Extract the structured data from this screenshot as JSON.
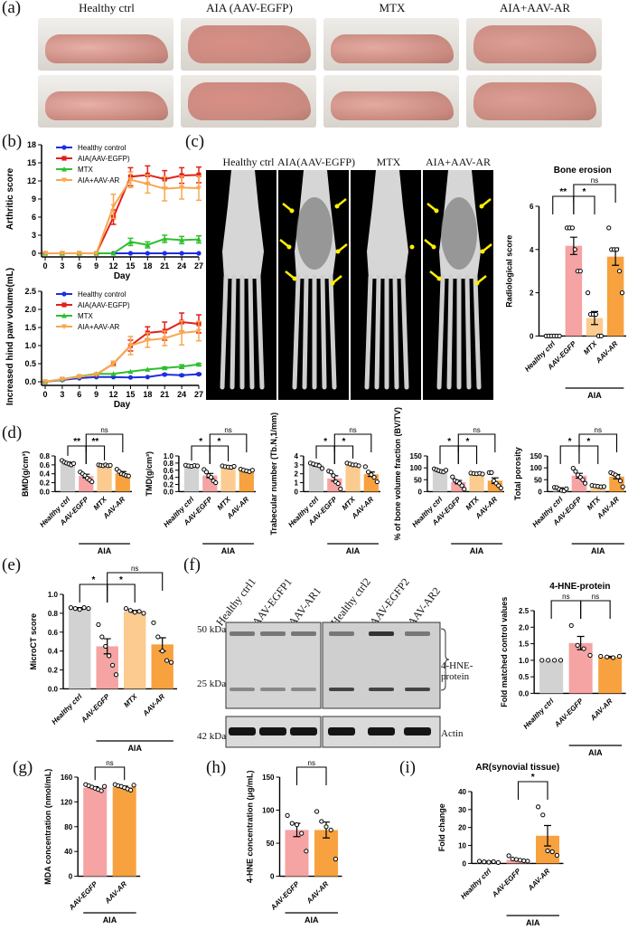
{
  "panels": {
    "a": "(a)",
    "b": "(b)",
    "c": "(c)",
    "d": "(d)",
    "e": "(e)",
    "f": "(f)",
    "g": "(g)",
    "h": "(h)",
    "i": "(i)"
  },
  "photo_headers": [
    "Healthy ctrl",
    "AIA (AAV-EGFP)",
    "MTX",
    "AIA+AAV-AR"
  ],
  "ct_headers": [
    "Healthy ctrl",
    "AIA(AAV-EGFP)",
    "MTX",
    "AIA+AAV-AR"
  ],
  "western": {
    "lanes": [
      "Healthy ctrl1",
      "AAV-EGFP1",
      "AAV-AR1",
      "Healthy ctrl2",
      "AAV-EGFP2",
      "AAV-AR2"
    ],
    "markers": [
      "50 kDa",
      "25 kDa",
      "42 kDa"
    ],
    "band_label": "4-HNE-protein",
    "actin_label": "Actin"
  },
  "colors": {
    "healthy": "#d2d2d2",
    "egfp": "#f5a3a3",
    "mtx": "#fbcb8f",
    "ar": "#f7a23f",
    "blue": "#1f2ee0",
    "red": "#e3201b",
    "green": "#2fbf2f",
    "orange": "#f7a850",
    "arrow": "#ffee00"
  },
  "chart_data": [
    {
      "id": "arthritic",
      "type": "line",
      "xlabel": "Day",
      "ylabel": "Arthritic score",
      "ylim": [
        0,
        18
      ],
      "yticks": [
        0,
        3,
        6,
        9,
        12,
        15,
        18
      ],
      "x": [
        0,
        3,
        6,
        9,
        12,
        15,
        18,
        21,
        24,
        27
      ],
      "legend": "top-left",
      "series": [
        {
          "name": "Healthy control",
          "color": "#1f2ee0",
          "marker": "circle",
          "values": [
            0,
            0,
            0,
            0,
            0,
            0,
            0,
            0,
            0,
            0
          ],
          "err": [
            0,
            0,
            0,
            0,
            0,
            0,
            0,
            0,
            0,
            0
          ]
        },
        {
          "name": "AIA(AAV-EGFP)",
          "color": "#e3201b",
          "marker": "square",
          "values": [
            0,
            0,
            0,
            0,
            6,
            12.7,
            13,
            12.3,
            12.9,
            13
          ],
          "err": [
            0,
            0,
            0,
            0,
            1.2,
            1.5,
            1.5,
            1.4,
            1.3,
            1.3
          ]
        },
        {
          "name": "MTX",
          "color": "#2fbf2f",
          "marker": "triangle",
          "values": [
            0,
            0,
            0,
            0,
            0,
            1.9,
            1.4,
            2.4,
            2.2,
            2.3
          ],
          "err": [
            0,
            0,
            0,
            0,
            0,
            0.6,
            0.5,
            0.6,
            0.6,
            0.6
          ]
        },
        {
          "name": "AIA+AAV-AR",
          "color": "#f7a850",
          "marker": "tri-down",
          "values": [
            0,
            0,
            0,
            0,
            7.8,
            12.2,
            11.5,
            10.7,
            10.9,
            10.8
          ],
          "err": [
            0,
            0,
            0,
            0,
            2,
            1.3,
            1.5,
            2,
            1.9,
            2
          ]
        }
      ]
    },
    {
      "id": "paw",
      "type": "line",
      "xlabel": "Day",
      "ylabel": "Increased hind paw volume(mL)",
      "ylim": [
        0,
        2.5
      ],
      "yticks": [
        0,
        0.5,
        1.0,
        1.5,
        2.0,
        2.5
      ],
      "x": [
        0,
        3,
        6,
        9,
        12,
        15,
        18,
        21,
        24,
        27
      ],
      "legend": "top-left",
      "series": [
        {
          "name": "Healthy control",
          "color": "#1f2ee0",
          "marker": "circle",
          "values": [
            0,
            0.05,
            0.1,
            0.13,
            0.13,
            0.12,
            0.13,
            0.2,
            0.18,
            0.21
          ],
          "err": [
            0,
            0,
            0,
            0,
            0,
            0,
            0,
            0.02,
            0.02,
            0.02
          ]
        },
        {
          "name": "AIA(AAV-EGFP)",
          "color": "#e3201b",
          "marker": "square",
          "values": [
            0,
            0.07,
            0.14,
            0.2,
            0.5,
            1.0,
            1.35,
            1.4,
            1.65,
            1.6
          ],
          "err": [
            0,
            0,
            0,
            0,
            0.07,
            0.15,
            0.17,
            0.25,
            0.25,
            0.25
          ]
        },
        {
          "name": "MTX",
          "color": "#2fbf2f",
          "marker": "triangle",
          "values": [
            0,
            0.07,
            0.15,
            0.22,
            0.22,
            0.28,
            0.34,
            0.38,
            0.42,
            0.48
          ],
          "err": [
            0,
            0,
            0,
            0,
            0,
            0,
            0,
            0.03,
            0.05,
            0.03
          ]
        },
        {
          "name": "AIA+AAV-AR",
          "color": "#f7a850",
          "marker": "tri-down",
          "values": [
            0,
            0.07,
            0.14,
            0.2,
            0.5,
            1.0,
            1.15,
            1.2,
            1.35,
            1.4
          ],
          "err": [
            0,
            0,
            0,
            0,
            0.07,
            0.25,
            0.2,
            0.2,
            0.33,
            0.27
          ]
        }
      ]
    },
    {
      "id": "erosion",
      "type": "bar",
      "title": "Bone erosion",
      "ylabel": "Radiological score",
      "ylim": [
        0,
        6
      ],
      "yticks": [
        0,
        2,
        4,
        6
      ],
      "categories": [
        "Healthy ctrl",
        "AAV-EGFP",
        "MTX",
        "AAV-AR"
      ],
      "colors": [
        "#d2d2d2",
        "#f5a3a3",
        "#fbcb8f",
        "#f7a23f"
      ],
      "values": [
        0,
        4.17,
        0.83,
        3.67
      ],
      "err": [
        0,
        0.4,
        0.3,
        0.4
      ],
      "points": [
        [
          0,
          0,
          0,
          0,
          0,
          0
        ],
        [
          5,
          5,
          5,
          4,
          3,
          3
        ],
        [
          2,
          1,
          1,
          1,
          0,
          0
        ],
        [
          5,
          4,
          4,
          4,
          3,
          2
        ]
      ],
      "group": {
        "label": "AIA",
        "from": 1,
        "to": 3
      },
      "sig": [
        {
          "a": 0,
          "b": 1,
          "label": "**"
        },
        {
          "a": 1,
          "b": 2,
          "label": "*"
        },
        {
          "a": 1,
          "b": 3,
          "label": "ns"
        }
      ]
    },
    {
      "id": "bmd",
      "type": "bar",
      "ylabel": "BMD(g/cm³)",
      "ylim": [
        0,
        0.8
      ],
      "yticks": [
        0,
        0.2,
        0.4,
        0.6,
        0.8
      ],
      "categories": [
        "Healthy ctrl",
        "AAV-EGFP",
        "MTX",
        "AAV-AR"
      ],
      "colors": [
        "#d2d2d2",
        "#f5a3a3",
        "#fbcb8f",
        "#f7a23f"
      ],
      "values": [
        0.64,
        0.35,
        0.59,
        0.41
      ],
      "err": [
        0.02,
        0.04,
        0.01,
        0.04
      ],
      "points": [
        [
          0.7,
          0.66,
          0.64,
          0.62,
          0.6,
          0.63
        ],
        [
          0.44,
          0.4,
          0.36,
          0.3,
          0.26,
          0.22
        ],
        [
          0.6,
          0.59,
          0.58,
          0.6,
          0.58,
          0.59
        ],
        [
          0.5,
          0.45,
          0.4,
          0.38,
          0.36,
          0.35
        ]
      ],
      "group": {
        "label": "AIA",
        "from": 1,
        "to": 3
      },
      "sig": [
        {
          "a": 0,
          "b": 1,
          "label": "**"
        },
        {
          "a": 1,
          "b": 2,
          "label": "**"
        },
        {
          "a": 1,
          "b": 3,
          "label": "ns"
        }
      ]
    },
    {
      "id": "tmd",
      "type": "bar",
      "ylabel": "TMD(g/cm³)",
      "ylim": [
        0,
        1.0
      ],
      "yticks": [
        0,
        0.2,
        0.4,
        0.6,
        0.8,
        1.0
      ],
      "categories": [
        "Healthy ctrl",
        "AAV-EGFP",
        "MTX",
        "AAV-AR"
      ],
      "colors": [
        "#d2d2d2",
        "#f5a3a3",
        "#fbcb8f",
        "#f7a23f"
      ],
      "values": [
        0.72,
        0.45,
        0.7,
        0.59
      ],
      "err": [
        0.01,
        0.06,
        0.01,
        0.02
      ],
      "points": [
        [
          0.74,
          0.72,
          0.71,
          0.73,
          0.72
        ],
        [
          0.62,
          0.55,
          0.45,
          0.4,
          0.3,
          0.25
        ],
        [
          0.72,
          0.7,
          0.69,
          0.68,
          0.71
        ],
        [
          0.63,
          0.6,
          0.58,
          0.56,
          0.6
        ]
      ],
      "group": {
        "label": "AIA",
        "from": 1,
        "to": 3
      },
      "sig": [
        {
          "a": 0,
          "b": 1,
          "label": "*"
        },
        {
          "a": 1,
          "b": 2,
          "label": "*"
        },
        {
          "a": 1,
          "b": 3,
          "label": "ns"
        }
      ]
    },
    {
      "id": "tbn",
      "type": "bar",
      "ylabel": "Trabecular number (Tb.N,1/mm)",
      "ylim": [
        0,
        4
      ],
      "yticks": [
        0,
        1,
        2,
        3,
        4
      ],
      "categories": [
        "Healthy ctrl",
        "AAV-EGFP",
        "MTX",
        "AAV-AR"
      ],
      "colors": [
        "#d2d2d2",
        "#f5a3a3",
        "#fbcb8f",
        "#f7a23f"
      ],
      "values": [
        3.0,
        1.48,
        3.05,
        1.95
      ],
      "err": [
        0.15,
        0.3,
        0.05,
        0.25
      ],
      "points": [
        [
          3.2,
          3.1,
          3.0,
          2.9,
          2.6
        ],
        [
          2.3,
          2.2,
          1.8,
          1.1,
          0.9,
          0.3
        ],
        [
          3.2,
          3.1,
          3.0,
          3.0,
          2.9
        ],
        [
          2.8,
          2.2,
          1.9,
          1.6,
          1.1
        ]
      ],
      "group": {
        "label": "AIA",
        "from": 1,
        "to": 3
      },
      "sig": [
        {
          "a": 0,
          "b": 1,
          "label": "*"
        },
        {
          "a": 1,
          "b": 2,
          "label": "*"
        },
        {
          "a": 1,
          "b": 3,
          "label": "ns"
        }
      ]
    },
    {
      "id": "bvtv",
      "type": "bar",
      "ylabel": "% of bone volume fraction (BV/TV)",
      "ylim": [
        0,
        150
      ],
      "yticks": [
        0,
        50,
        100,
        150
      ],
      "categories": [
        "Healthy ctrl",
        "AAV-EGFP",
        "MTX",
        "AAV-AR"
      ],
      "colors": [
        "#d2d2d2",
        "#f5a3a3",
        "#fbcb8f",
        "#f7a23f"
      ],
      "values": [
        88,
        40,
        76,
        46
      ],
      "err": [
        3,
        7,
        1,
        12
      ],
      "points": [
        [
          96,
          92,
          88,
          85,
          83,
          90
        ],
        [
          62,
          47,
          42,
          35,
          25,
          10
        ],
        [
          78,
          76,
          75,
          77,
          74
        ],
        [
          80,
          80,
          45,
          35,
          25,
          15
        ]
      ],
      "group": {
        "label": "AIA",
        "from": 1,
        "to": 3
      },
      "sig": [
        {
          "a": 0,
          "b": 1,
          "label": "*"
        },
        {
          "a": 1,
          "b": 2,
          "label": "*"
        },
        {
          "a": 1,
          "b": 3,
          "label": "ns"
        }
      ]
    },
    {
      "id": "porosity",
      "type": "bar",
      "ylabel": "Total porosity",
      "ylim": [
        0,
        150
      ],
      "yticks": [
        0,
        50,
        100,
        150
      ],
      "categories": [
        "Healthy ctrl",
        "AAV-EGFP",
        "MTX",
        "AAV-AR"
      ],
      "colors": [
        "#d2d2d2",
        "#f5a3a3",
        "#fbcb8f",
        "#f7a23f"
      ],
      "values": [
        12,
        67,
        22,
        63
      ],
      "err": [
        4,
        10,
        1,
        9
      ],
      "points": [
        [
          18,
          17,
          10,
          5,
          3,
          12
        ],
        [
          98,
          85,
          70,
          60,
          50,
          35
        ],
        [
          26,
          24,
          22,
          20,
          21
        ],
        [
          80,
          75,
          70,
          62,
          45,
          20
        ]
      ],
      "group": {
        "label": "AIA",
        "from": 1,
        "to": 3
      },
      "sig": [
        {
          "a": 0,
          "b": 1,
          "label": "*"
        },
        {
          "a": 1,
          "b": 2,
          "label": "*"
        },
        {
          "a": 1,
          "b": 3,
          "label": "ns"
        }
      ]
    },
    {
      "id": "microct",
      "type": "bar",
      "ylabel": "MicroCT score",
      "ylim": [
        0,
        1.0
      ],
      "yticks": [
        0,
        0.2,
        0.4,
        0.6,
        0.8,
        1.0
      ],
      "categories": [
        "Healthy ctrl",
        "AAV-EGFP",
        "MTX",
        "AAV-AR"
      ],
      "colors": [
        "#d2d2d2",
        "#f5a3a3",
        "#fbcb8f",
        "#f7a23f"
      ],
      "values": [
        0.85,
        0.45,
        0.82,
        0.47
      ],
      "err": [
        0.01,
        0.08,
        0.01,
        0.07
      ],
      "points": [
        [
          0.86,
          0.85,
          0.84,
          0.86,
          0.85
        ],
        [
          0.68,
          0.55,
          0.45,
          0.35,
          0.25,
          0.15
        ],
        [
          0.85,
          0.83,
          0.81,
          0.82,
          0.8
        ],
        [
          0.7,
          0.55,
          0.4,
          0.3,
          0.28
        ]
      ],
      "group": {
        "label": "AIA",
        "from": 1,
        "to": 3
      },
      "sig": [
        {
          "a": 0,
          "b": 1,
          "label": "*"
        },
        {
          "a": 1,
          "b": 2,
          "label": "*"
        },
        {
          "a": 1,
          "b": 3,
          "label": "ns"
        }
      ]
    },
    {
      "id": "hne_protein",
      "type": "bar",
      "title": "4-HNE-protein",
      "ylabel": "Fold matched control values",
      "ylim": [
        0,
        2.5
      ],
      "yticks": [
        0,
        0.5,
        1.0,
        1.5,
        2.0,
        2.5
      ],
      "categories": [
        "Healthy ctrl",
        "AAV-EGFP",
        "AAV-AR"
      ],
      "colors": [
        "#d2d2d2",
        "#f5a3a3",
        "#f7a23f"
      ],
      "values": [
        1.0,
        1.52,
        1.1
      ],
      "err": [
        0,
        0.2,
        0.02
      ],
      "points": [
        [
          1,
          1,
          1,
          1
        ],
        [
          2.05,
          1.45,
          1.35,
          1.15
        ],
        [
          1.12,
          1.1,
          1.08,
          1.12
        ]
      ],
      "group": {
        "label": "AIA",
        "from": 1,
        "to": 2
      },
      "sig": [
        {
          "a": 0,
          "b": 1,
          "label": "ns"
        },
        {
          "a": 1,
          "b": 2,
          "label": "ns"
        }
      ]
    },
    {
      "id": "mda",
      "type": "bar",
      "ylabel": "MDA concentration (nmol/mL)",
      "ylim": [
        0,
        160
      ],
      "yticks": [
        0,
        40,
        80,
        120,
        160
      ],
      "categories": [
        "AAV-EGFP",
        "AAV-AR"
      ],
      "colors": [
        "#f5a3a3",
        "#f7a23f"
      ],
      "values": [
        143,
        144
      ],
      "err": [
        1.5,
        1.5
      ],
      "points": [
        [
          148,
          146,
          144,
          142,
          140,
          138,
          145
        ],
        [
          148,
          146,
          145,
          143,
          141,
          139,
          147
        ]
      ],
      "group": {
        "label": "AIA",
        "from": 0,
        "to": 1
      },
      "sig": [
        {
          "a": 0,
          "b": 1,
          "label": "ns"
        }
      ]
    },
    {
      "id": "hne_conc",
      "type": "bar",
      "ylabel": "4-HNE concentration (μg/mL)",
      "ylim": [
        0,
        150
      ],
      "yticks": [
        0,
        50,
        100,
        150
      ],
      "categories": [
        "AAV-EGFP",
        "AAV-AR"
      ],
      "colors": [
        "#f5a3a3",
        "#f7a23f"
      ],
      "values": [
        70,
        70
      ],
      "err": [
        10,
        12
      ],
      "points": [
        [
          92,
          80,
          78,
          65,
          38
        ],
        [
          98,
          83,
          75,
          70,
          26
        ]
      ],
      "group": {
        "label": "AIA",
        "from": 0,
        "to": 1
      },
      "sig": [
        {
          "a": 0,
          "b": 1,
          "label": "ns"
        }
      ]
    },
    {
      "id": "ar_synovial",
      "type": "bar",
      "title": "AR(synovial tissue)",
      "ylabel": "Fold change",
      "ylim": [
        0,
        40
      ],
      "yticks": [
        0,
        10,
        20,
        30,
        40
      ],
      "categories": [
        "Healthy ctrl",
        "AAV-EGFP",
        "AAV-AR"
      ],
      "colors": [
        "#d2d2d2",
        "#f5a3a3",
        "#f7a23f"
      ],
      "values": [
        1,
        2,
        15.4
      ],
      "err": [
        0.2,
        0.4,
        5.7
      ],
      "points": [
        [
          1.2,
          0.9,
          0.7,
          1.0,
          0.5
        ],
        [
          4.3,
          2.5,
          2.2,
          1.8,
          1.5,
          1.3
        ],
        [
          31.5,
          27,
          7,
          6.5,
          4.5
        ]
      ],
      "group": {
        "label": "AIA",
        "from": 1,
        "to": 2
      },
      "sig": [
        {
          "a": 1,
          "b": 2,
          "label": "*"
        }
      ]
    }
  ]
}
